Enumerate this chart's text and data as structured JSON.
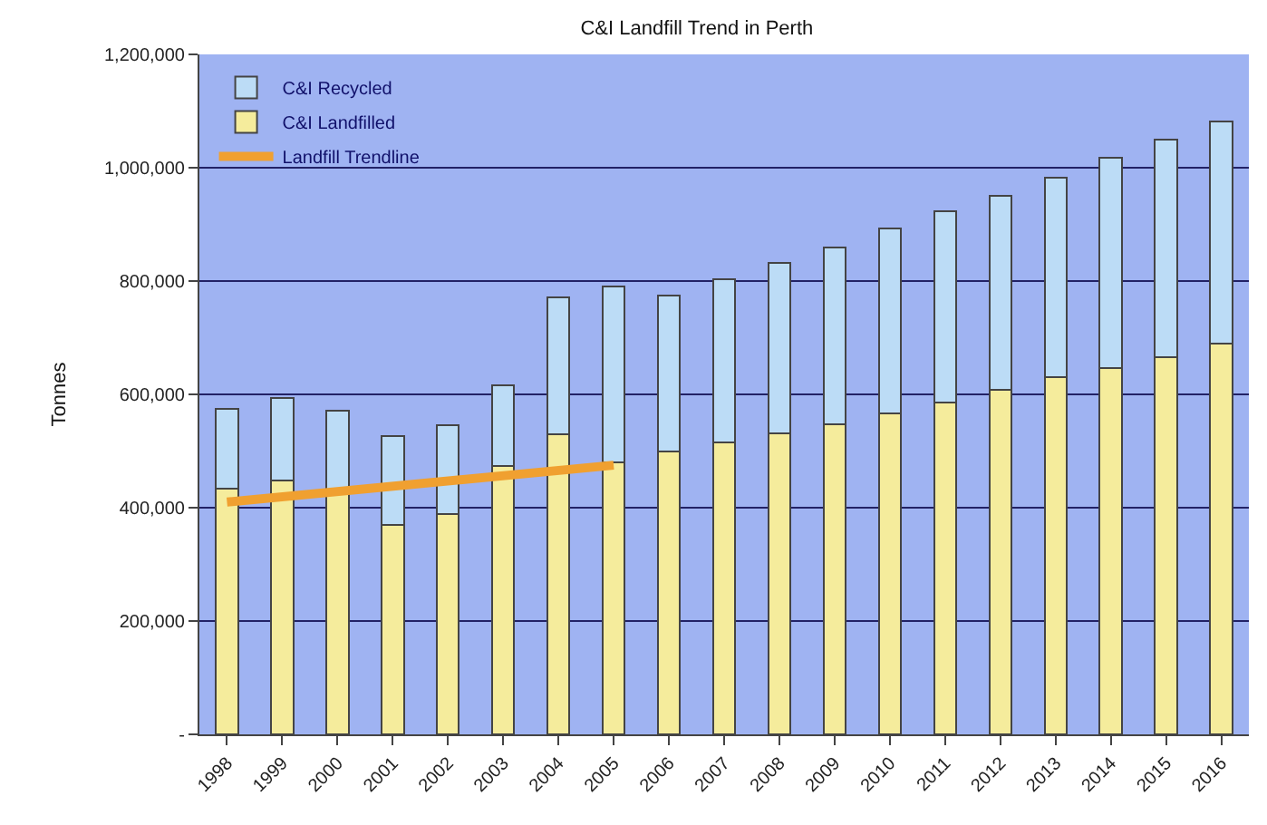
{
  "chart_data": {
    "type": "bar",
    "title": "C&I Landfill Trend in Perth",
    "ylabel": "Tonnes",
    "categories": [
      "1998",
      "1999",
      "2000",
      "2001",
      "2002",
      "2003",
      "2004",
      "2005",
      "2006",
      "2007",
      "2008",
      "2009",
      "2010",
      "2011",
      "2012",
      "2013",
      "2014",
      "2015",
      "2016"
    ],
    "stacked": true,
    "series": [
      {
        "name": "C&I Landfilled",
        "color": "#f5ec9c",
        "values": [
          433000,
          448000,
          430000,
          369000,
          389000,
          474000,
          530000,
          480000,
          499000,
          516000,
          532000,
          547000,
          566000,
          585000,
          608000,
          630000,
          647000,
          666000,
          689000
        ]
      },
      {
        "name": "C&I Recycled",
        "color": "#bcdcf6",
        "values": [
          142000,
          146000,
          142000,
          158000,
          157000,
          142000,
          241000,
          310000,
          276000,
          287000,
          300000,
          313000,
          327000,
          339000,
          342000,
          352000,
          370000,
          384000,
          392000
        ]
      },
      {
        "name": "Landfill Trendline",
        "type": "line",
        "color": "#f0a030",
        "values": [
          410000,
          null,
          null,
          null,
          null,
          null,
          null,
          475000,
          null,
          null,
          null,
          null,
          null,
          null,
          null,
          null,
          null,
          null,
          null
        ],
        "marker": "none"
      }
    ],
    "ylim": [
      0,
      1200000
    ],
    "yticks": [
      {
        "value": 0,
        "label": "-"
      },
      {
        "value": 200000,
        "label": "200,000"
      },
      {
        "value": 400000,
        "label": "400,000"
      },
      {
        "value": 600000,
        "label": "600,000"
      },
      {
        "value": 800000,
        "label": "800,000"
      },
      {
        "value": 1000000,
        "label": "1,000,000"
      },
      {
        "value": 1200000,
        "label": "1,200,000"
      }
    ],
    "grid": "y",
    "legend": "top left"
  }
}
